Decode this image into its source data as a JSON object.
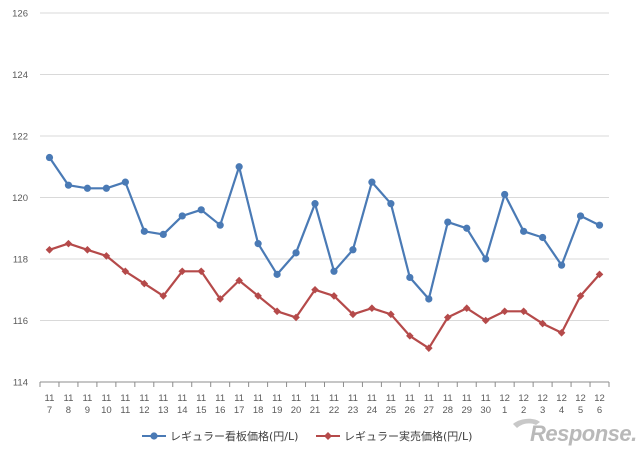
{
  "chart_data": {
    "type": "line",
    "categories": [
      [
        "11",
        "7"
      ],
      [
        "11",
        "8"
      ],
      [
        "11",
        "9"
      ],
      [
        "11",
        "10"
      ],
      [
        "11",
        "11"
      ],
      [
        "11",
        "12"
      ],
      [
        "11",
        "13"
      ],
      [
        "11",
        "14"
      ],
      [
        "11",
        "15"
      ],
      [
        "11",
        "16"
      ],
      [
        "11",
        "17"
      ],
      [
        "11",
        "18"
      ],
      [
        "11",
        "19"
      ],
      [
        "11",
        "20"
      ],
      [
        "11",
        "21"
      ],
      [
        "11",
        "22"
      ],
      [
        "11",
        "23"
      ],
      [
        "11",
        "24"
      ],
      [
        "11",
        "25"
      ],
      [
        "11",
        "26"
      ],
      [
        "11",
        "27"
      ],
      [
        "11",
        "28"
      ],
      [
        "11",
        "29"
      ],
      [
        "11",
        "30"
      ],
      [
        "12",
        "1"
      ],
      [
        "12",
        "2"
      ],
      [
        "12",
        "3"
      ],
      [
        "12",
        "4"
      ],
      [
        "12",
        "5"
      ],
      [
        "12",
        "6"
      ]
    ],
    "series": [
      {
        "name": "レギュラー看板価格(円/L)",
        "color": "#4a7ab5",
        "marker": "circle",
        "values": [
          121.3,
          120.4,
          120.3,
          120.3,
          120.5,
          118.9,
          118.8,
          119.4,
          119.6,
          119.1,
          121.0,
          118.5,
          117.5,
          118.2,
          119.8,
          117.6,
          118.3,
          120.5,
          119.8,
          117.4,
          116.7,
          119.2,
          119.0,
          118.0,
          120.1,
          118.9,
          118.7,
          117.8,
          119.4,
          119.1
        ]
      },
      {
        "name": "レギュラー実売価格(円/L)",
        "color": "#b54a4a",
        "marker": "diamond",
        "values": [
          118.3,
          118.5,
          118.3,
          118.1,
          117.6,
          117.2,
          116.8,
          117.6,
          117.6,
          116.7,
          117.3,
          116.8,
          116.3,
          116.1,
          117.0,
          116.8,
          116.2,
          116.4,
          116.2,
          115.5,
          115.1,
          116.1,
          116.4,
          116.0,
          116.3,
          116.3,
          115.9,
          115.6,
          116.8,
          117.5
        ]
      }
    ],
    "y_ticks": [
      "114",
      "116",
      "118",
      "120",
      "122",
      "124",
      "126"
    ],
    "ylim": [
      114,
      126
    ],
    "grid": true,
    "legend": "bottom",
    "title": "",
    "xlabel": "",
    "ylabel": ""
  },
  "watermark": {
    "text": "Response."
  }
}
